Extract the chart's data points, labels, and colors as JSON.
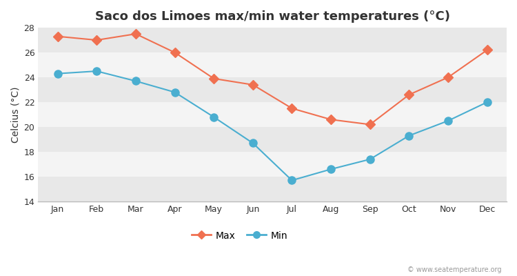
{
  "title": "Saco dos Limoes max/min water temperatures (°C)",
  "months": [
    "Jan",
    "Feb",
    "Mar",
    "Apr",
    "May",
    "Jun",
    "Jul",
    "Aug",
    "Sep",
    "Oct",
    "Nov",
    "Dec"
  ],
  "max_temps": [
    27.3,
    27.0,
    27.5,
    26.0,
    23.9,
    23.4,
    21.5,
    20.6,
    20.2,
    22.6,
    24.0,
    26.2
  ],
  "min_temps": [
    24.3,
    24.5,
    23.7,
    22.8,
    20.8,
    18.7,
    15.7,
    16.6,
    17.4,
    19.3,
    20.5,
    22.0
  ],
  "max_color": "#f07050",
  "min_color": "#4aaed0",
  "ylim": [
    14,
    28
  ],
  "yticks": [
    14,
    16,
    18,
    20,
    22,
    24,
    26,
    28
  ],
  "ylabel": "Celcius (°C)",
  "fig_bg_color": "#ffffff",
  "plot_bg_color": "#ffffff",
  "band_color_dark": "#e8e8e8",
  "band_color_light": "#f4f4f4",
  "watermark": "© www.seatemperature.org",
  "legend_max": "Max",
  "legend_min": "Min",
  "title_fontsize": 13,
  "label_fontsize": 10,
  "tick_fontsize": 9,
  "marker_size_max": 7,
  "marker_size_min": 8,
  "linewidth": 1.5
}
